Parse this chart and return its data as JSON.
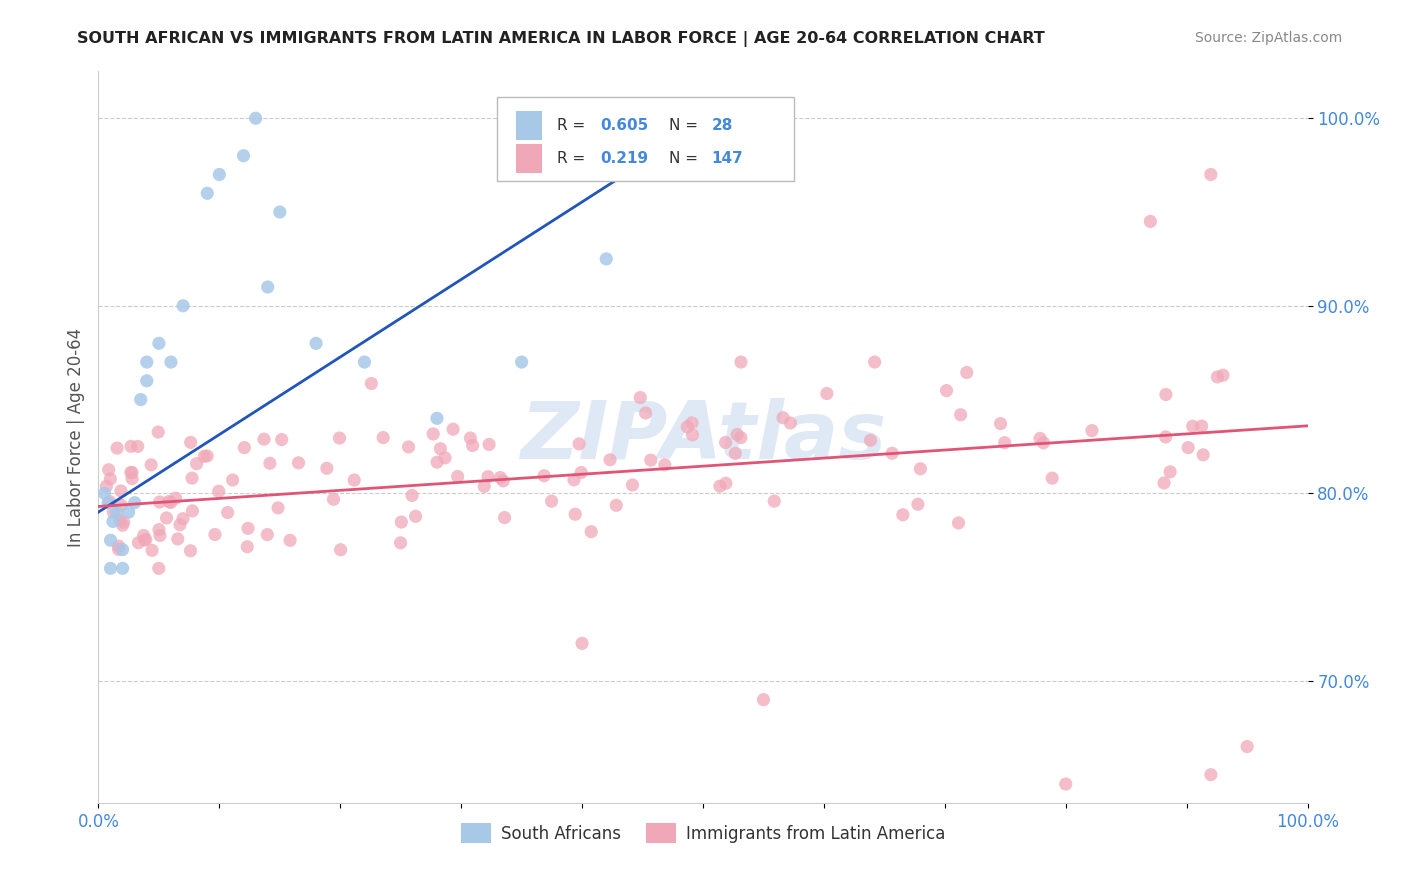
{
  "title": "SOUTH AFRICAN VS IMMIGRANTS FROM LATIN AMERICA IN LABOR FORCE | AGE 20-64 CORRELATION CHART",
  "source": "Source: ZipAtlas.com",
  "ylabel": "In Labor Force | Age 20-64",
  "xlim": [
    0.0,
    1.0
  ],
  "ylim": [
    0.635,
    1.025
  ],
  "yticks": [
    0.7,
    0.8,
    0.9,
    1.0
  ],
  "ytick_labels": [
    "70.0%",
    "80.0%",
    "90.0%",
    "100.0%"
  ],
  "xticks": [
    0.0,
    0.1,
    0.2,
    0.3,
    0.4,
    0.5,
    0.6,
    0.7,
    0.8,
    0.9,
    1.0
  ],
  "xtick_labels": [
    "0.0%",
    "",
    "",
    "",
    "",
    "",
    "",
    "",
    "",
    "",
    "100.0%"
  ],
  "blue_color": "#a8c8e8",
  "pink_color": "#f0a8b8",
  "blue_line_color": "#2255bb",
  "pink_line_color": "#e05575",
  "legend_label_blue": "South Africans",
  "legend_label_pink": "Immigrants from Latin America",
  "background_color": "#ffffff",
  "grid_color": "#cccccc",
  "watermark": "ZIPAtlas",
  "tick_color": "#4488dd",
  "blue_scatter_x": [
    0.005,
    0.008,
    0.01,
    0.01,
    0.012,
    0.015,
    0.02,
    0.02,
    0.025,
    0.03,
    0.035,
    0.04,
    0.04,
    0.05,
    0.06,
    0.07,
    0.09,
    0.1,
    0.12,
    0.13,
    0.14,
    0.15,
    0.18,
    0.22,
    0.28,
    0.35,
    0.42,
    0.5
  ],
  "blue_scatter_y": [
    0.8,
    0.795,
    0.76,
    0.775,
    0.785,
    0.79,
    0.76,
    0.77,
    0.79,
    0.795,
    0.85,
    0.86,
    0.87,
    0.88,
    0.87,
    0.9,
    0.96,
    0.97,
    0.98,
    1.0,
    0.91,
    0.95,
    0.88,
    0.87,
    0.84,
    0.87,
    0.925,
    0.97
  ],
  "blue_trend_x": [
    0.0,
    0.52
  ],
  "blue_trend_y": [
    0.79,
    1.005
  ],
  "pink_trend_x": [
    0.0,
    1.0
  ],
  "pink_trend_y": [
    0.793,
    0.836
  ]
}
